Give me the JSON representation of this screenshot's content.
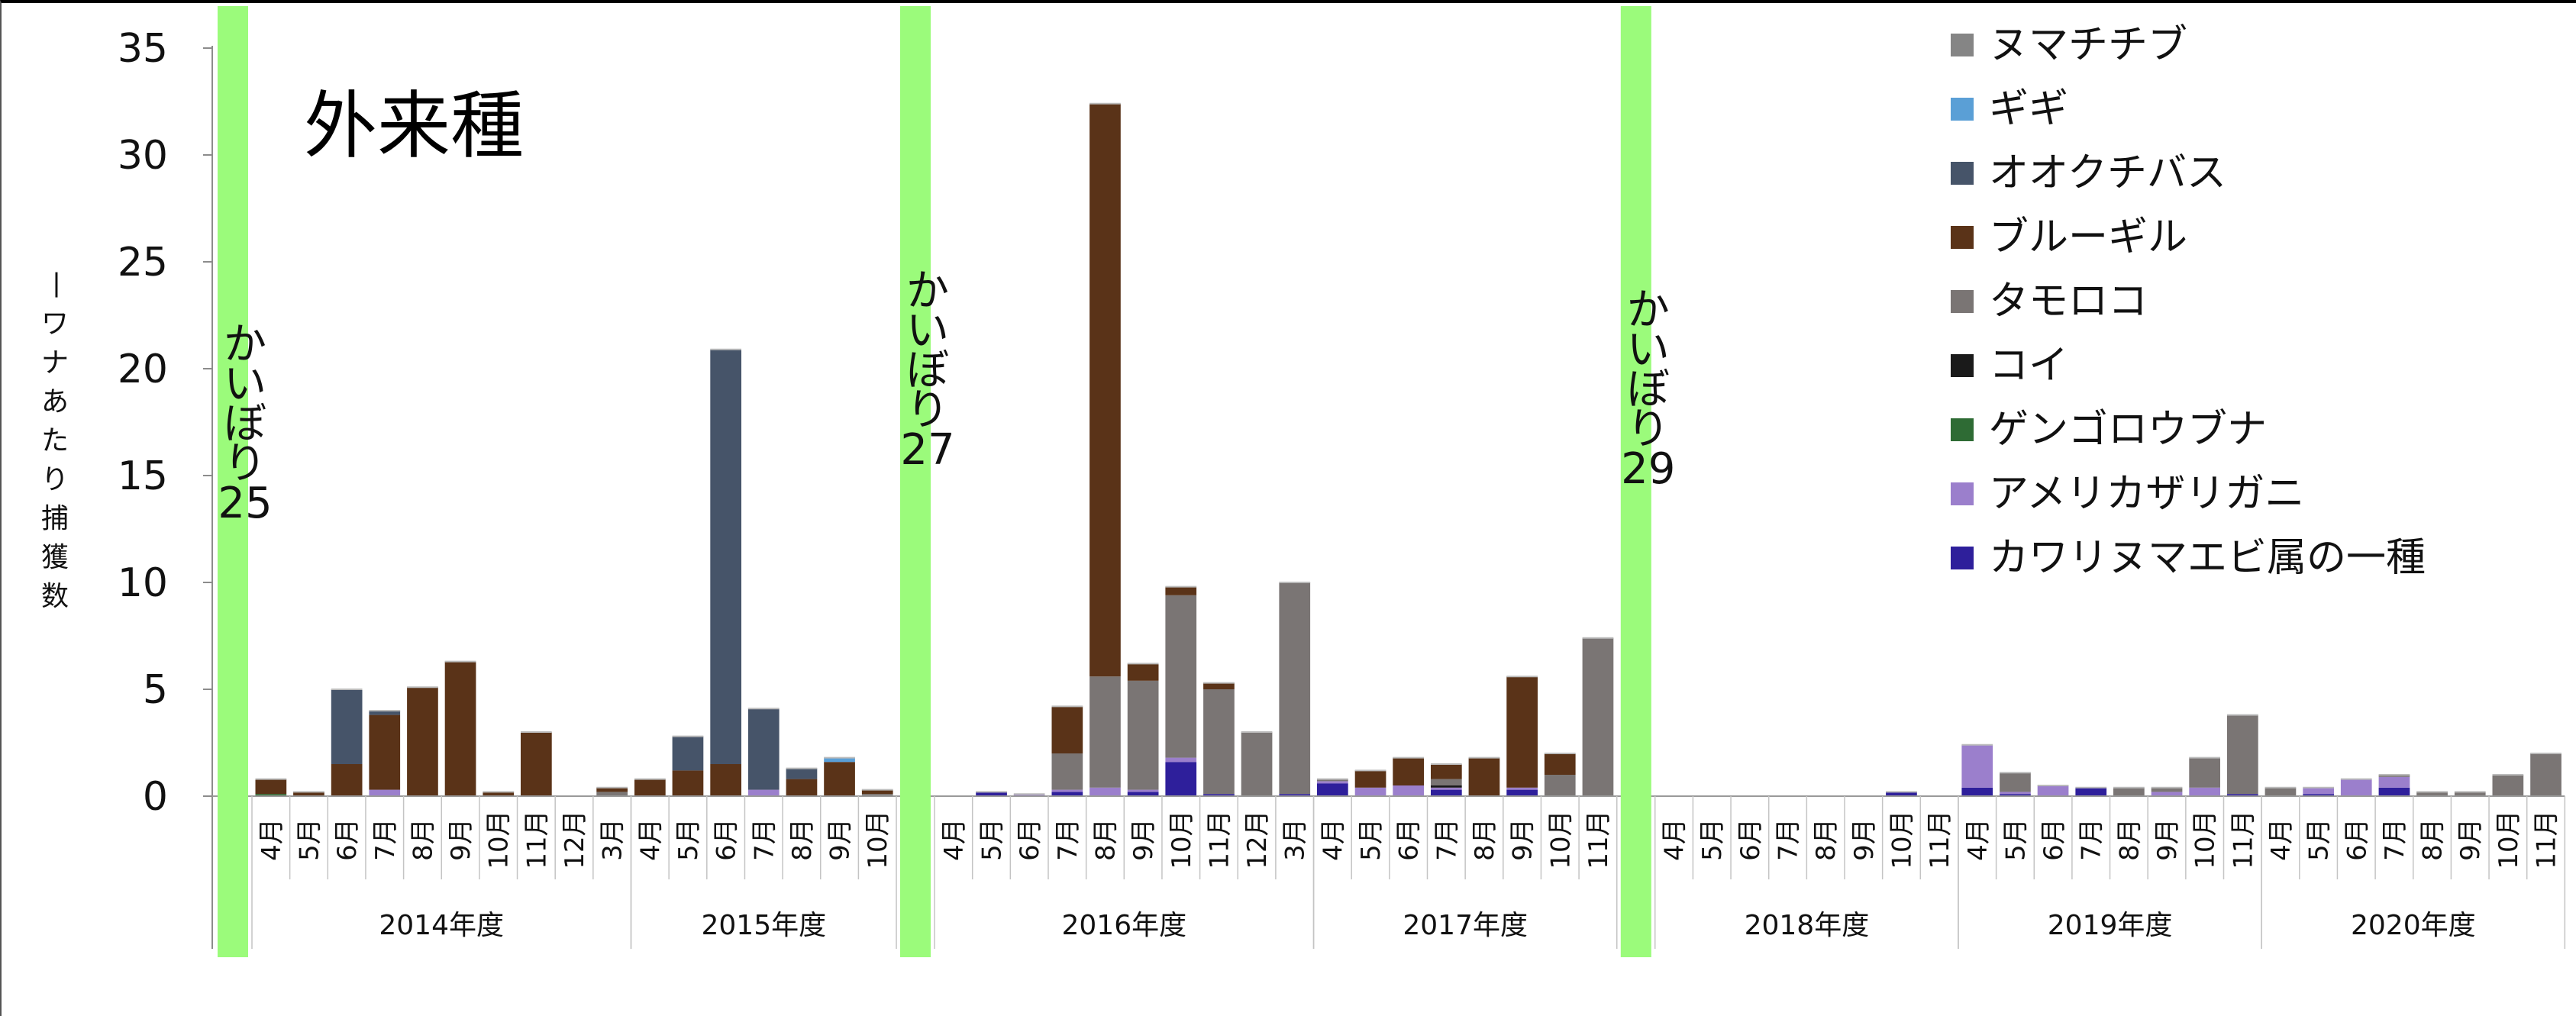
{
  "chart_data": {
    "type": "bar",
    "stacked": true,
    "title": "外来種",
    "ylabel": "一ワナあたり捕獲数",
    "ylim": [
      0,
      35
    ],
    "yticks": [
      0,
      5,
      10,
      15,
      20,
      25,
      30,
      35
    ],
    "grid": false,
    "legend_position": "top-right",
    "months": [
      "4月",
      "5月",
      "6月",
      "7月",
      "8月",
      "9月",
      "10月",
      "11月",
      "12月",
      "3月",
      "4月",
      "5月",
      "6月",
      "7月",
      "8月",
      "9月",
      "10月",
      "4月",
      "5月",
      "6月",
      "7月",
      "8月",
      "9月",
      "10月",
      "11月",
      "12月",
      "3月",
      "4月",
      "5月",
      "6月",
      "7月",
      "8月",
      "9月",
      "10月",
      "11月",
      "4月",
      "5月",
      "6月",
      "7月",
      "8月",
      "9月",
      "10月",
      "11月",
      "4月",
      "5月",
      "6月",
      "7月",
      "8月",
      "9月",
      "10月",
      "11月",
      "4月",
      "5月",
      "6月",
      "7月",
      "8月",
      "9月",
      "10月",
      "11月"
    ],
    "years": [
      {
        "label": "2014年度",
        "start": 0,
        "end": 9
      },
      {
        "label": "2015年度",
        "start": 10,
        "end": 16
      },
      {
        "label": "2016年度",
        "start": 17,
        "end": 26
      },
      {
        "label": "2017年度",
        "start": 27,
        "end": 34
      },
      {
        "label": "2018年度",
        "start": 35,
        "end": 42
      },
      {
        "label": "2019年度",
        "start": 43,
        "end": 50
      },
      {
        "label": "2020年度",
        "start": 51,
        "end": 58
      }
    ],
    "series": [
      {
        "name": "カワリヌマエビ属の一種",
        "color": "#2e1f9b",
        "values": [
          0,
          0,
          0,
          0,
          0,
          0,
          0,
          0,
          0,
          0,
          0,
          0,
          0,
          0,
          0,
          0,
          0,
          0,
          0.2,
          0,
          0.2,
          0,
          0.2,
          1.6,
          0.1,
          0,
          0.1,
          0.6,
          0,
          0,
          0.3,
          0,
          0.3,
          0,
          0,
          0,
          0,
          0,
          0,
          0,
          0,
          0.2,
          0,
          0.4,
          0.1,
          0,
          0.4,
          0,
          0,
          0,
          0.1,
          0,
          0.1,
          0,
          0.4,
          0,
          0,
          0,
          0
        ]
      },
      {
        "name": "アメリカザリガニ",
        "color": "#9b7fcc",
        "values": [
          0,
          0,
          0,
          0.3,
          0,
          0,
          0,
          0,
          0,
          0,
          0,
          0,
          0,
          0.3,
          0,
          0,
          0,
          0,
          0,
          0.1,
          0.1,
          0.4,
          0.1,
          0.2,
          0,
          0,
          0,
          0.1,
          0.4,
          0.5,
          0.1,
          0,
          0.1,
          0,
          0,
          0,
          0,
          0,
          0,
          0,
          0,
          0,
          0,
          2.0,
          0.1,
          0.5,
          0,
          0,
          0.2,
          0.4,
          0,
          0,
          0.3,
          0.8,
          0.5,
          0,
          0,
          0,
          0
        ]
      },
      {
        "name": "ゲンゴロウブナ",
        "color": "#2e6b34",
        "values": [
          0.1,
          0,
          0,
          0,
          0,
          0,
          0,
          0,
          0,
          0,
          0,
          0,
          0,
          0,
          0,
          0,
          0,
          0,
          0,
          0,
          0,
          0,
          0,
          0,
          0,
          0,
          0,
          0,
          0,
          0,
          0,
          0,
          0,
          0,
          0,
          0,
          0,
          0,
          0,
          0,
          0,
          0,
          0,
          0,
          0,
          0,
          0,
          0,
          0,
          0,
          0,
          0,
          0,
          0,
          0,
          0,
          0,
          0,
          0
        ]
      },
      {
        "name": "コイ",
        "color": "#1a1a1a",
        "values": [
          0,
          0,
          0,
          0,
          0,
          0,
          0,
          0,
          0,
          0,
          0,
          0,
          0,
          0,
          0,
          0,
          0,
          0,
          0,
          0,
          0,
          0,
          0,
          0,
          0,
          0,
          0,
          0,
          0,
          0,
          0.1,
          0,
          0,
          0,
          0,
          0,
          0,
          0,
          0,
          0,
          0,
          0,
          0,
          0,
          0,
          0,
          0,
          0,
          0,
          0,
          0,
          0,
          0,
          0,
          0,
          0,
          0,
          0,
          0
        ]
      },
      {
        "name": "タモロコ",
        "color": "#7a7574",
        "values": [
          0,
          0,
          0,
          0,
          0,
          0,
          0,
          0,
          0,
          0.2,
          0,
          0,
          0,
          0,
          0,
          0,
          0.1,
          0,
          0,
          0,
          1.7,
          5.2,
          5.1,
          7.6,
          4.9,
          3.0,
          9.9,
          0.1,
          0,
          0,
          0.3,
          0,
          0,
          1.0,
          7.4,
          0,
          0,
          0,
          0,
          0,
          0,
          0,
          0,
          0,
          0.9,
          0,
          0,
          0.4,
          0.2,
          1.4,
          3.7,
          0.4,
          0,
          0,
          0.1,
          0.2,
          0.2,
          1.0,
          2.0
        ]
      },
      {
        "name": "ブルーギル",
        "color": "#5a3318",
        "values": [
          0.7,
          0.2,
          1.5,
          3.5,
          5.1,
          6.3,
          0.2,
          3.0,
          0,
          0.2,
          0.8,
          1.2,
          1.5,
          0,
          0.8,
          1.6,
          0.2,
          0,
          0,
          0,
          2.2,
          26.8,
          0.8,
          0.4,
          0.3,
          0,
          0,
          0,
          0.8,
          1.3,
          0.7,
          1.8,
          5.2,
          1.0,
          0,
          0,
          0,
          0,
          0,
          0,
          0,
          0,
          0,
          0,
          0,
          0,
          0,
          0,
          0,
          0,
          0,
          0,
          0,
          0,
          0,
          0,
          0,
          0,
          0
        ]
      },
      {
        "name": "オオクチバス",
        "color": "#465469",
        "values": [
          0,
          0,
          3.5,
          0.2,
          0,
          0,
          0,
          0,
          0,
          0,
          0,
          1.6,
          19.4,
          3.8,
          0.5,
          0,
          0,
          0,
          0,
          0,
          0,
          0,
          0,
          0,
          0,
          0,
          0,
          0,
          0,
          0,
          0,
          0,
          0,
          0,
          0,
          0,
          0,
          0,
          0,
          0,
          0,
          0,
          0,
          0,
          0,
          0,
          0,
          0,
          0,
          0,
          0,
          0,
          0,
          0,
          0,
          0,
          0,
          0,
          0
        ]
      },
      {
        "name": "ギギ",
        "color": "#5a9fd6",
        "values": [
          0,
          0,
          0,
          0,
          0,
          0,
          0,
          0,
          0,
          0,
          0,
          0,
          0,
          0,
          0,
          0.2,
          0,
          0,
          0,
          0,
          0,
          0,
          0,
          0,
          0,
          0,
          0,
          0,
          0,
          0,
          0,
          0,
          0,
          0,
          0,
          0,
          0,
          0,
          0,
          0,
          0,
          0,
          0,
          0,
          0,
          0,
          0,
          0,
          0,
          0,
          0,
          0,
          0,
          0,
          0,
          0,
          0,
          0,
          0
        ]
      },
      {
        "name": "ヌマチチブ",
        "color": "#858585",
        "values": [
          0,
          0,
          0,
          0,
          0,
          0,
          0,
          0,
          0,
          0,
          0,
          0,
          0,
          0,
          0,
          0,
          0,
          0,
          0,
          0,
          0,
          0,
          0,
          0,
          0,
          0,
          0,
          0,
          0,
          0,
          0,
          0,
          0,
          0,
          0,
          0,
          0,
          0,
          0,
          0,
          0,
          0,
          0,
          0,
          0,
          0,
          0,
          0,
          0,
          0,
          0,
          0,
          0,
          0,
          0,
          0,
          0,
          0,
          0
        ]
      }
    ],
    "annotations": [
      {
        "label": "かいぼり25",
        "lines": [
          "か",
          "い",
          "ぼ",
          "り",
          "25"
        ],
        "after_index": -1
      },
      {
        "label": "かいぼり27",
        "lines": [
          "か",
          "い",
          "ぼ",
          "り",
          "27"
        ],
        "after_index": 16
      },
      {
        "label": "かいぼり29",
        "lines": [
          "か",
          "い",
          "ぼ",
          "り",
          "29"
        ],
        "after_index": 34
      }
    ]
  }
}
